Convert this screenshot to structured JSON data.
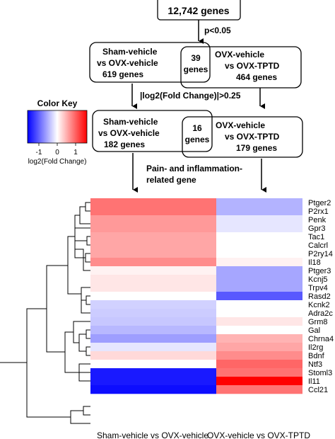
{
  "flow": {
    "top_box": "12,742 genes",
    "filter1": "p<0.05",
    "stage1": {
      "left_line1": "Sham-vehicle",
      "left_line2": "vs OVX-vehicle",
      "left_line3": "619 genes",
      "overlap_line1": "39",
      "overlap_line2": "genes",
      "right_line1": "OVX-vehicle",
      "right_line2": "vs OVX-TPTD",
      "right_line3": "464 genes"
    },
    "filter2": "|log2(Fold Change)|>0.25",
    "stage2": {
      "left_line1": "Sham-vehicle",
      "left_line2": "vs OVX-vehicle",
      "left_line3": "182 genes",
      "overlap_line1": "16",
      "overlap_line2": "genes",
      "right_line1": "OVX-vehicle",
      "right_line2": "vs OVX-TPTD",
      "right_line3": "179 genes"
    },
    "filter3_line1": "Pain- and inflammation-",
    "filter3_line2": "related gene"
  },
  "color_key": {
    "title": "Color Key",
    "ticks": [
      "-1",
      "0",
      "1"
    ],
    "label": "log2(Fold Change)",
    "colors": {
      "low": "#0000ff",
      "mid": "#ffffff",
      "high": "#ff0000"
    }
  },
  "heatmap": {
    "columns": [
      "Sham-vehicle vs OVX-vehicle",
      "OVX-vehicle vs OVX-TPTD"
    ],
    "genes": [
      "Ptger2",
      "P2rx1",
      "Penk",
      "Gpr3",
      "Tac1",
      "Calcrl",
      "P2ry14",
      "Il18",
      "Ptger3",
      "Kcnj5",
      "Trpv4",
      "Rasd2",
      "Kcnk2",
      "Adra2c",
      "Grm8",
      "Gal",
      "Chrna4",
      "Il2rg",
      "Bdnf",
      "Ntf3",
      "Stoml3",
      "Il11",
      "Ccl21"
    ],
    "values": [
      [
        0.55,
        -0.3
      ],
      [
        0.55,
        -0.3
      ],
      [
        0.4,
        -0.1
      ],
      [
        0.4,
        -0.1
      ],
      [
        0.35,
        0.0
      ],
      [
        0.35,
        0.0
      ],
      [
        0.35,
        0.0
      ],
      [
        0.45,
        0.05
      ],
      [
        0.05,
        -0.35
      ],
      [
        0.1,
        -0.35
      ],
      [
        0.1,
        -0.35
      ],
      [
        0.0,
        -0.65
      ],
      [
        -0.18,
        0.0
      ],
      [
        -0.2,
        0.0
      ],
      [
        -0.22,
        0.1
      ],
      [
        -0.28,
        0.0
      ],
      [
        -0.38,
        0.3
      ],
      [
        -0.1,
        0.35
      ],
      [
        0.15,
        0.45
      ],
      [
        0.0,
        0.6
      ],
      [
        -0.9,
        0.55
      ],
      [
        -0.9,
        1.0
      ],
      [
        -0.95,
        0.55
      ]
    ]
  }
}
